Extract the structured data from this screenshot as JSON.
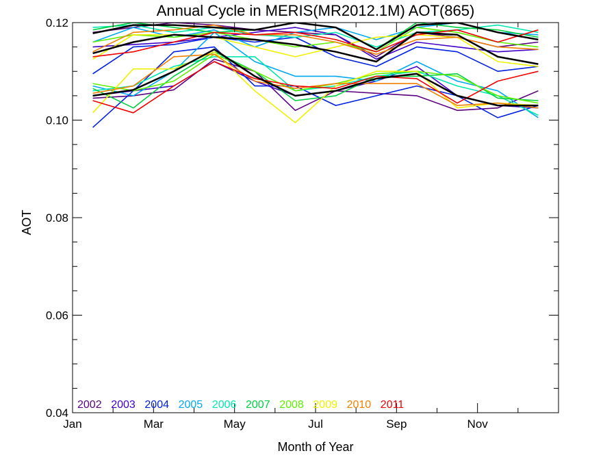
{
  "chart_data": {
    "type": "line",
    "title": "Annual Cycle in MERIS(MR2012.1M) AOT(865)",
    "xlabel": "Month of Year",
    "ylabel": "AOT",
    "xlim": [
      0,
      12
    ],
    "ylim": [
      0.04,
      0.12
    ],
    "x_ticks": [
      {
        "value": 0,
        "label": "Jan"
      },
      {
        "value": 2,
        "label": "Mar"
      },
      {
        "value": 4,
        "label": "May"
      },
      {
        "value": 6,
        "label": "Jul"
      },
      {
        "value": 8,
        "label": "Sep"
      },
      {
        "value": 10,
        "label": "Nov"
      }
    ],
    "x_minor_ticks": [
      1,
      3,
      5,
      7,
      9,
      11
    ],
    "y_ticks": [
      {
        "value": 0.04,
        "label": "0.04"
      },
      {
        "value": 0.06,
        "label": "0.06"
      },
      {
        "value": 0.08,
        "label": "0.08"
      },
      {
        "value": 0.1,
        "label": "0.10"
      },
      {
        "value": 0.12,
        "label": "0.12"
      }
    ],
    "y_minor_ticks": [
      0.045,
      0.05,
      0.055,
      0.065,
      0.07,
      0.075,
      0.085,
      0.09,
      0.095,
      0.105,
      0.11,
      0.115
    ],
    "x": [
      0.5,
      1.5,
      2.5,
      3.5,
      4.5,
      5.5,
      6.5,
      7.5,
      8.5,
      9.5,
      10.5,
      11.5
    ],
    "series": [
      {
        "name": "2002",
        "color": "#5a007f",
        "values": [
          0.1045,
          0.105,
          0.1062,
          0.1125,
          0.11,
          0.102,
          0.106,
          0.1055,
          0.105,
          0.102,
          0.1025,
          0.106
        ]
      },
      {
        "name": "2002",
        "color": "#5a007f",
        "values": [
          0.118,
          0.119,
          0.12,
          0.1195,
          0.1185,
          0.118,
          0.1175,
          0.113,
          0.118,
          0.117,
          0.115,
          0.116
        ]
      },
      {
        "name": "2003",
        "color": "#4000c8",
        "values": [
          0.105,
          0.106,
          0.107,
          0.112,
          0.108,
          0.105,
          0.106,
          0.108,
          0.111,
          0.105,
          0.103,
          0.1025
        ]
      },
      {
        "name": "2003",
        "color": "#4000c8",
        "values": [
          0.115,
          0.1155,
          0.116,
          0.117,
          0.118,
          0.119,
          0.1175,
          0.1125,
          0.116,
          0.115,
          0.114,
          0.1145
        ]
      },
      {
        "name": "2004",
        "color": "#0020e0",
        "values": [
          0.0985,
          0.106,
          0.114,
          0.115,
          0.107,
          0.107,
          0.103,
          0.105,
          0.107,
          0.105,
          0.1005,
          0.103
        ]
      },
      {
        "name": "2004",
        "color": "#0020e0",
        "values": [
          0.1095,
          0.115,
          0.1155,
          0.117,
          0.116,
          0.117,
          0.113,
          0.111,
          0.115,
          0.114,
          0.11,
          0.111
        ]
      },
      {
        "name": "2005",
        "color": "#00a8f0",
        "values": [
          0.107,
          0.105,
          0.11,
          0.118,
          0.112,
          0.109,
          0.109,
          0.108,
          0.112,
          0.108,
          0.106,
          0.1005
        ]
      },
      {
        "name": "2005",
        "color": "#00a8f0",
        "values": [
          0.116,
          0.119,
          0.117,
          0.1185,
          0.115,
          0.118,
          0.119,
          0.1165,
          0.119,
          0.12,
          0.118,
          0.1175
        ]
      },
      {
        "name": "2006",
        "color": "#00e8b0",
        "values": [
          0.119,
          0.1195,
          0.118,
          0.119,
          0.1175,
          0.117,
          0.118,
          0.115,
          0.118,
          0.1185,
          0.1195,
          0.118
        ]
      },
      {
        "name": "2006",
        "color": "#00e8b0",
        "values": [
          0.106,
          0.107,
          0.111,
          0.113,
          0.113,
          0.106,
          0.107,
          0.109,
          0.11,
          0.107,
          0.105,
          0.101
        ]
      },
      {
        "name": "2007",
        "color": "#00d040",
        "values": [
          0.1065,
          0.1025,
          0.109,
          0.114,
          0.11,
          0.104,
          0.105,
          0.109,
          0.109,
          0.1095,
          0.1045,
          0.104
        ]
      },
      {
        "name": "2007",
        "color": "#00d040",
        "values": [
          0.1185,
          0.12,
          0.119,
          0.118,
          0.1185,
          0.12,
          0.119,
          0.1145,
          0.12,
          0.119,
          0.1185,
          0.117
        ]
      },
      {
        "name": "2008",
        "color": "#60f000",
        "values": [
          0.116,
          0.1175,
          0.117,
          0.118,
          0.1165,
          0.115,
          0.116,
          0.114,
          0.119,
          0.118,
          0.116,
          0.115
        ]
      },
      {
        "name": "2008",
        "color": "#60f000",
        "values": [
          0.1075,
          0.106,
          0.108,
          0.1135,
          0.11,
          0.106,
          0.1075,
          0.1095,
          0.11,
          0.109,
          0.105,
          0.1035
        ]
      },
      {
        "name": "2009",
        "color": "#f0f000",
        "values": [
          0.1015,
          0.1105,
          0.1105,
          0.114,
          0.106,
          0.0995,
          0.107,
          0.11,
          0.11,
          0.1025,
          0.1035,
          0.103
        ]
      },
      {
        "name": "2009",
        "color": "#f0f000",
        "values": [
          0.1125,
          0.1175,
          0.1175,
          0.117,
          0.115,
          0.113,
          0.115,
          0.117,
          0.1175,
          0.117,
          0.112,
          0.111
        ]
      },
      {
        "name": "2010",
        "color": "#f08000",
        "values": [
          0.1055,
          0.107,
          0.113,
          0.1135,
          0.108,
          0.1065,
          0.1075,
          0.1075,
          0.1075,
          0.103,
          0.1035,
          0.1025
        ]
      },
      {
        "name": "2010",
        "color": "#f08000",
        "values": [
          0.114,
          0.118,
          0.1185,
          0.1195,
          0.1175,
          0.1175,
          0.116,
          0.1135,
          0.1165,
          0.117,
          0.115,
          0.1145
        ]
      },
      {
        "name": "2011",
        "color": "#f00000",
        "values": [
          0.104,
          0.1015,
          0.107,
          0.112,
          0.1085,
          0.107,
          0.1065,
          0.109,
          0.1085,
          0.1035,
          0.108,
          0.11
        ]
      },
      {
        "name": "2011",
        "color": "#f00000",
        "values": [
          0.113,
          0.114,
          0.116,
          0.118,
          0.1175,
          0.118,
          0.1165,
          0.114,
          0.1175,
          0.1185,
          0.116,
          0.1185
        ]
      },
      {
        "name": "",
        "color": "#000000",
        "width": 2.5,
        "values": [
          0.105,
          0.1062,
          0.11,
          0.1145,
          0.109,
          0.105,
          0.106,
          0.1085,
          0.1095,
          0.105,
          0.103,
          0.103
        ]
      },
      {
        "name": "",
        "color": "#000000",
        "width": 2.5,
        "values": [
          0.1137,
          0.116,
          0.1175,
          0.117,
          0.1165,
          0.1155,
          0.114,
          0.112,
          0.118,
          0.1175,
          0.113,
          0.1115
        ]
      },
      {
        "name": "",
        "color": "#000000",
        "width": 2.5,
        "values": [
          0.1178,
          0.1195,
          0.1195,
          0.119,
          0.1185,
          0.12,
          0.119,
          0.1145,
          0.1195,
          0.12,
          0.118,
          0.1165
        ]
      }
    ],
    "legend": {
      "placement": "bottom-left",
      "entries": [
        {
          "label": "2002",
          "color": "#5a007f"
        },
        {
          "label": "2003",
          "color": "#4000c8"
        },
        {
          "label": "2004",
          "color": "#0020e0"
        },
        {
          "label": "2005",
          "color": "#00a8f0"
        },
        {
          "label": "2006",
          "color": "#00e8b0"
        },
        {
          "label": "2007",
          "color": "#00d040"
        },
        {
          "label": "2008",
          "color": "#60f000"
        },
        {
          "label": "2009",
          "color": "#f0f000"
        },
        {
          "label": "2010",
          "color": "#f08000"
        },
        {
          "label": "2011",
          "color": "#f00000"
        }
      ]
    },
    "grid": false
  }
}
